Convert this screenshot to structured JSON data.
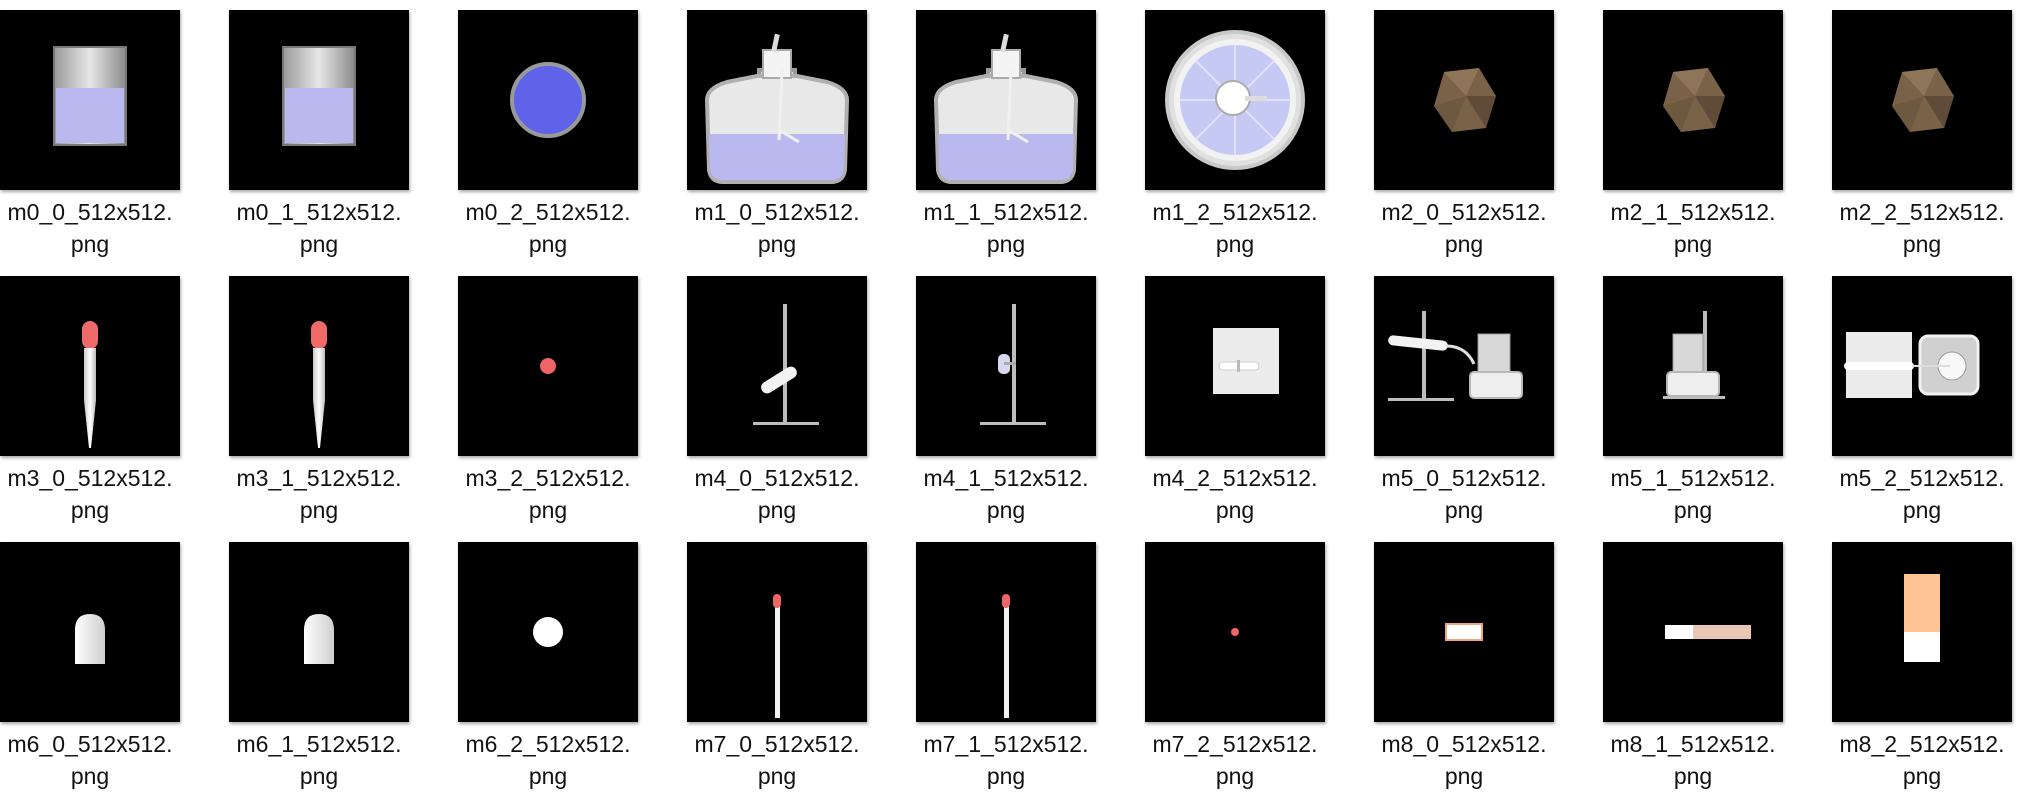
{
  "files": [
    {
      "name_line1": "m0_0_512x512.",
      "name_line2": "png",
      "thumb": "beaker-front"
    },
    {
      "name_line1": "m0_1_512x512.",
      "name_line2": "png",
      "thumb": "beaker-front"
    },
    {
      "name_line1": "m0_2_512x512.",
      "name_line2": "png",
      "thumb": "beaker-top"
    },
    {
      "name_line1": "m1_0_512x512.",
      "name_line2": "png",
      "thumb": "flask-front"
    },
    {
      "name_line1": "m1_1_512x512.",
      "name_line2": "png",
      "thumb": "flask-front"
    },
    {
      "name_line1": "m1_2_512x512.",
      "name_line2": "png",
      "thumb": "flask-top"
    },
    {
      "name_line1": "m2_0_512x512.",
      "name_line2": "png",
      "thumb": "rock"
    },
    {
      "name_line1": "m2_1_512x512.",
      "name_line2": "png",
      "thumb": "rock"
    },
    {
      "name_line1": "m2_2_512x512.",
      "name_line2": "png",
      "thumb": "rock"
    },
    {
      "name_line1": "m3_0_512x512.",
      "name_line2": "png",
      "thumb": "dropper"
    },
    {
      "name_line1": "m3_1_512x512.",
      "name_line2": "png",
      "thumb": "dropper"
    },
    {
      "name_line1": "m3_2_512x512.",
      "name_line2": "png",
      "thumb": "dot-red"
    },
    {
      "name_line1": "m4_0_512x512.",
      "name_line2": "png",
      "thumb": "stand-tube"
    },
    {
      "name_line1": "m4_1_512x512.",
      "name_line2": "png",
      "thumb": "stand-side"
    },
    {
      "name_line1": "m4_2_512x512.",
      "name_line2": "png",
      "thumb": "stand-top"
    },
    {
      "name_line1": "m5_0_512x512.",
      "name_line2": "png",
      "thumb": "apparatus-front"
    },
    {
      "name_line1": "m5_1_512x512.",
      "name_line2": "png",
      "thumb": "apparatus-side"
    },
    {
      "name_line1": "m5_2_512x512.",
      "name_line2": "png",
      "thumb": "apparatus-top"
    },
    {
      "name_line1": "m6_0_512x512.",
      "name_line2": "png",
      "thumb": "cap-front"
    },
    {
      "name_line1": "m6_1_512x512.",
      "name_line2": "png",
      "thumb": "cap-front"
    },
    {
      "name_line1": "m6_2_512x512.",
      "name_line2": "png",
      "thumb": "dot-white"
    },
    {
      "name_line1": "m7_0_512x512.",
      "name_line2": "png",
      "thumb": "match"
    },
    {
      "name_line1": "m7_1_512x512.",
      "name_line2": "png",
      "thumb": "match"
    },
    {
      "name_line1": "m7_2_512x512.",
      "name_line2": "png",
      "thumb": "dot-small-red"
    },
    {
      "name_line1": "m8_0_512x512.",
      "name_line2": "png",
      "thumb": "strip-small"
    },
    {
      "name_line1": "m8_1_512x512.",
      "name_line2": "png",
      "thumb": "strip-long"
    },
    {
      "name_line1": "m8_2_512x512.",
      "name_line2": "png",
      "thumb": "strip-vertical"
    }
  ]
}
